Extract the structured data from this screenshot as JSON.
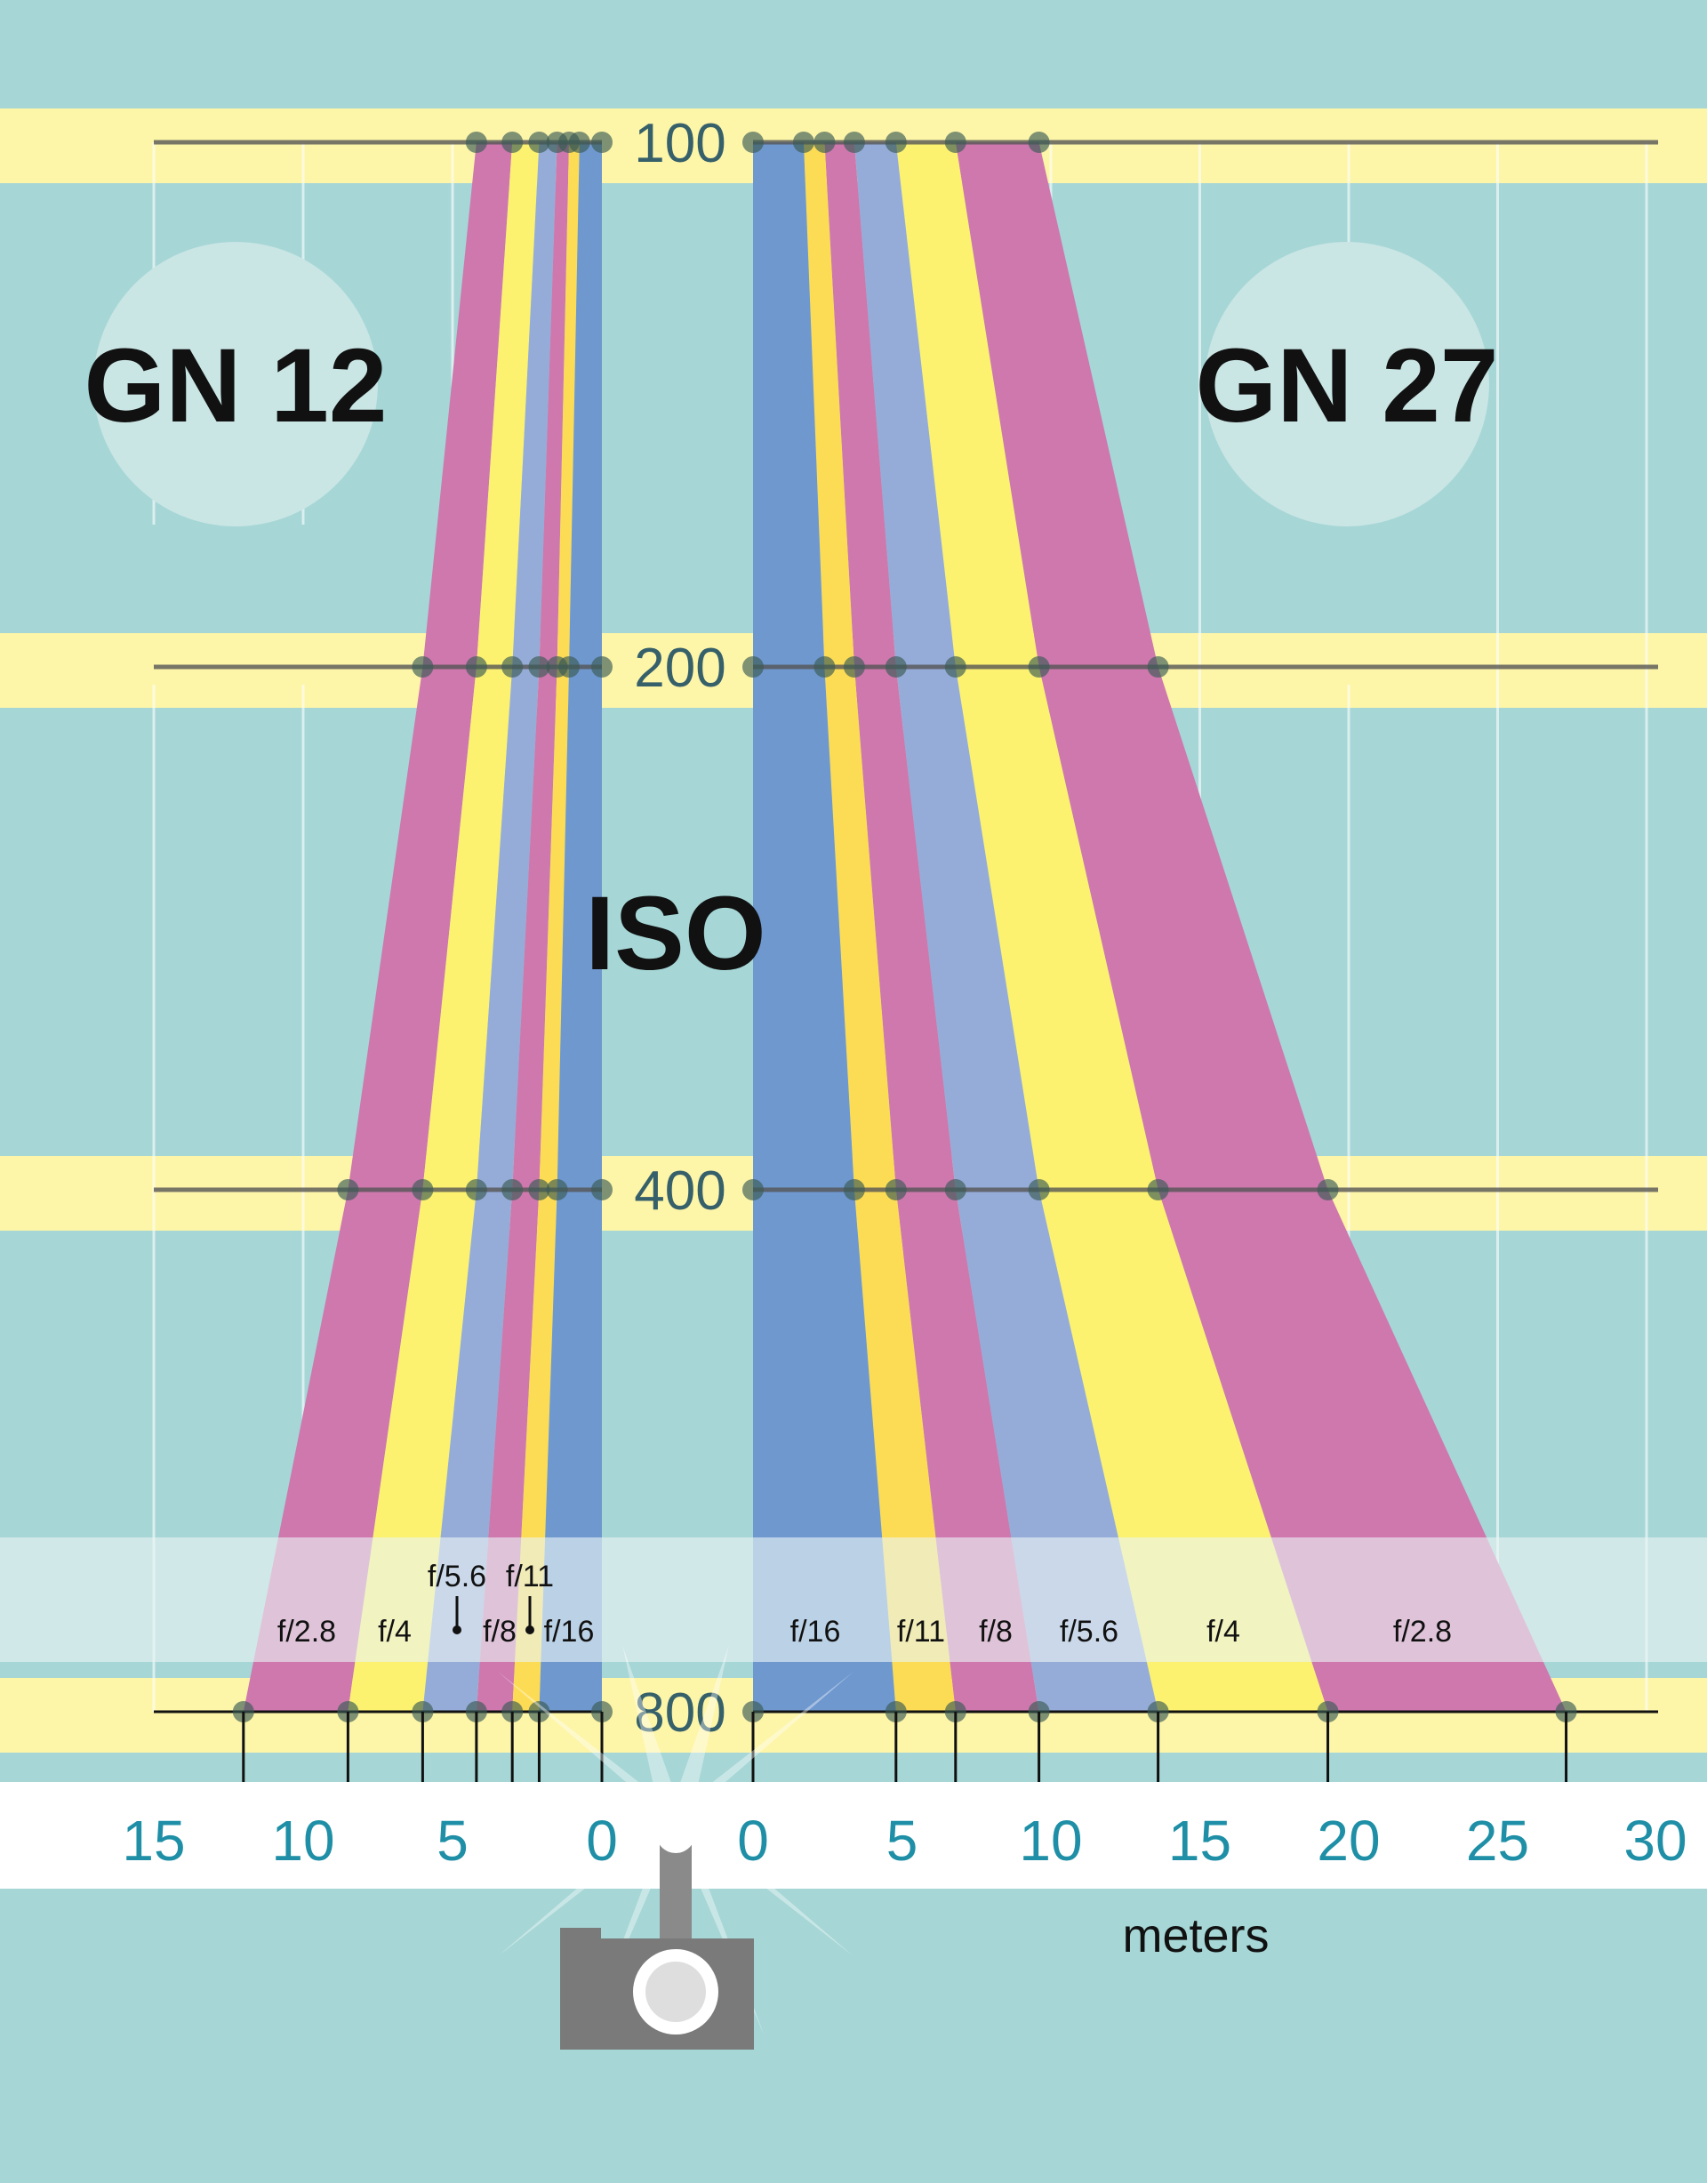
{
  "chart_data": {
    "type": "area",
    "title": "",
    "iso_axis_label": "ISO",
    "iso_levels": [
      100,
      200,
      400,
      800
    ],
    "xlabel": "meters",
    "apertures": [
      "f/2.8",
      "f/4",
      "f/5.6",
      "f/8",
      "f/11",
      "f/16"
    ],
    "panels": [
      {
        "title": "GN 12",
        "direction": "left",
        "x_ticks": [
          15,
          10,
          5,
          0
        ],
        "xlim": [
          0,
          15
        ],
        "distances_m": {
          "100": [
            4.2,
            3.0,
            2.1,
            1.5,
            1.1,
            0.75
          ],
          "200": [
            6.0,
            4.2,
            3.0,
            2.1,
            1.5,
            1.1
          ],
          "400": [
            8.5,
            6.0,
            4.2,
            3.0,
            2.1,
            1.5
          ],
          "800": [
            12.0,
            8.5,
            6.0,
            4.2,
            3.0,
            2.1
          ]
        },
        "band_labels": [
          {
            "text": "f/2.8",
            "row": "low"
          },
          {
            "text": "f/4",
            "row": "low"
          },
          {
            "text": "f/5.6",
            "row": "high"
          },
          {
            "text": "f/8",
            "row": "low"
          },
          {
            "text": "f/11",
            "row": "high"
          },
          {
            "text": "f/16",
            "row": "low"
          }
        ]
      },
      {
        "title": "GN 27",
        "direction": "right",
        "x_ticks": [
          0,
          5,
          10,
          15,
          20,
          25,
          30
        ],
        "xlim": [
          0,
          30
        ],
        "distances_m": {
          "100": [
            9.6,
            6.8,
            4.8,
            3.4,
            2.4,
            1.7
          ],
          "200": [
            13.6,
            9.6,
            6.8,
            4.8,
            3.4,
            2.4
          ],
          "400": [
            19.3,
            13.6,
            9.6,
            6.8,
            4.8,
            3.4
          ],
          "800": [
            27.3,
            19.3,
            13.6,
            9.6,
            6.8,
            4.8
          ]
        },
        "band_labels": [
          {
            "text": "f/2.8",
            "row": "low"
          },
          {
            "text": "f/4",
            "row": "low"
          },
          {
            "text": "f/5.6",
            "row": "low"
          },
          {
            "text": "f/8",
            "row": "low"
          },
          {
            "text": "f/11",
            "row": "low"
          },
          {
            "text": "f/16",
            "row": "low"
          }
        ]
      }
    ]
  },
  "colors": {
    "background": "#a6d6d6",
    "iso_band": "#fdf5a8",
    "legend_strip": "#eaf4f3",
    "axis_strip": "#ffffff",
    "f2_8": "#ce78ae",
    "f4": "#fdf270",
    "f5_6": "#96acd8",
    "f8": "#ce78ae",
    "f11": "#fddc55",
    "f16": "#6f98cf",
    "gn_circle": "#c9e5e4",
    "tick_label": "#1e8fa6",
    "iso_label": "#36606a",
    "camera": "#7a7a7a"
  },
  "icons": {
    "camera": "camera-with-flash-icon"
  }
}
